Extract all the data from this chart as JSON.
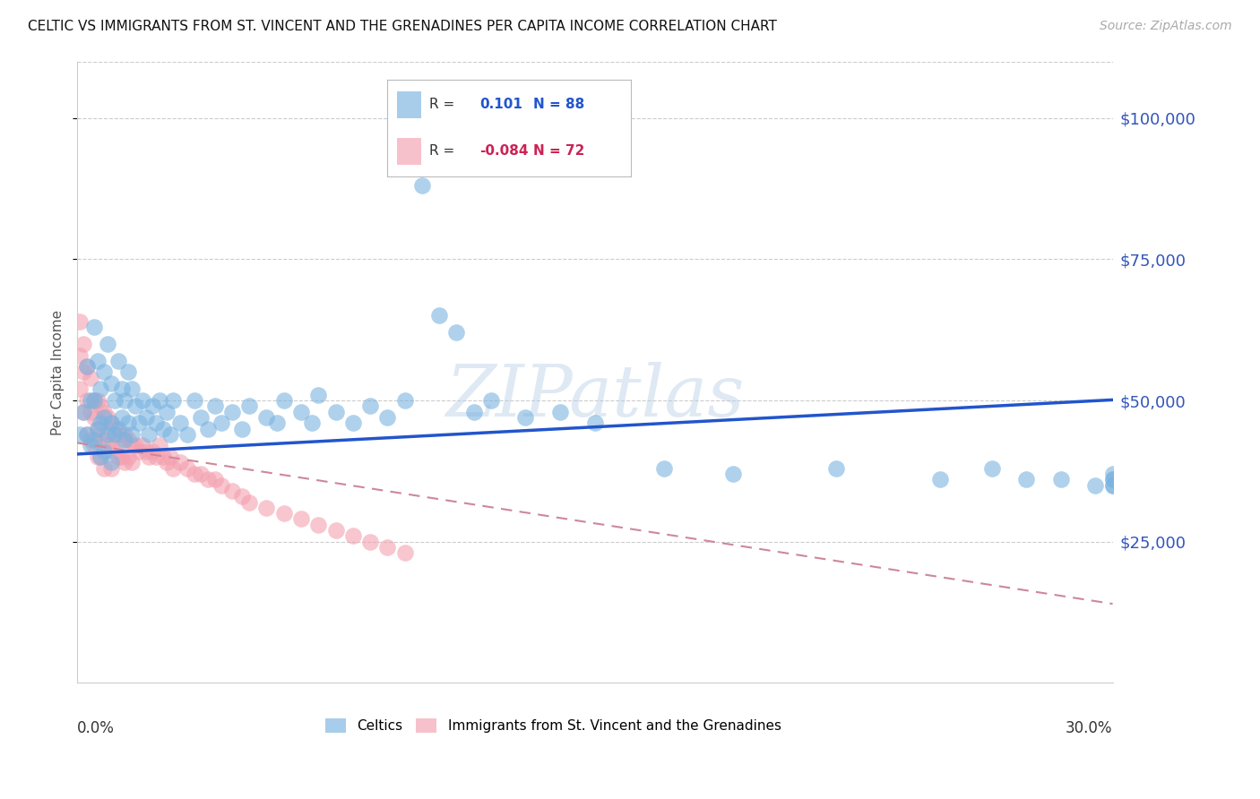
{
  "title": "CELTIC VS IMMIGRANTS FROM ST. VINCENT AND THE GRENADINES PER CAPITA INCOME CORRELATION CHART",
  "source_text": "Source: ZipAtlas.com",
  "ylabel": "Per Capita Income",
  "ytick_labels": [
    "$25,000",
    "$50,000",
    "$75,000",
    "$100,000"
  ],
  "ytick_values": [
    25000,
    50000,
    75000,
    100000
  ],
  "ylim": [
    0,
    110000
  ],
  "xlim": [
    0.0,
    0.3
  ],
  "background_color": "#ffffff",
  "blue_color": "#7ab3e0",
  "pink_color": "#f4a0b0",
  "blue_line_color": "#2255cc",
  "pink_line_color": "#cc8899",
  "blue_intercept": 40500,
  "blue_slope": 32000,
  "pink_intercept": 42500,
  "pink_slope": -95000,
  "blue_points_x": [
    0.001,
    0.002,
    0.003,
    0.003,
    0.004,
    0.004,
    0.005,
    0.005,
    0.005,
    0.006,
    0.006,
    0.007,
    0.007,
    0.007,
    0.008,
    0.008,
    0.008,
    0.009,
    0.009,
    0.01,
    0.01,
    0.01,
    0.011,
    0.011,
    0.012,
    0.012,
    0.013,
    0.013,
    0.014,
    0.014,
    0.015,
    0.015,
    0.016,
    0.016,
    0.017,
    0.018,
    0.019,
    0.02,
    0.021,
    0.022,
    0.023,
    0.024,
    0.025,
    0.026,
    0.027,
    0.028,
    0.03,
    0.032,
    0.034,
    0.036,
    0.038,
    0.04,
    0.042,
    0.045,
    0.048,
    0.05,
    0.055,
    0.058,
    0.06,
    0.065,
    0.068,
    0.07,
    0.075,
    0.08,
    0.085,
    0.09,
    0.095,
    0.1,
    0.105,
    0.11,
    0.115,
    0.12,
    0.13,
    0.14,
    0.15,
    0.17,
    0.19,
    0.22,
    0.25,
    0.265,
    0.275,
    0.285,
    0.295,
    0.3,
    0.3,
    0.3,
    0.3,
    0.3
  ],
  "blue_points_y": [
    44000,
    48000,
    56000,
    44000,
    50000,
    42000,
    63000,
    50000,
    43000,
    57000,
    45000,
    52000,
    46000,
    40000,
    55000,
    47000,
    41000,
    60000,
    44000,
    53000,
    46000,
    39000,
    50000,
    44000,
    57000,
    45000,
    52000,
    47000,
    50000,
    43000,
    55000,
    46000,
    52000,
    44000,
    49000,
    46000,
    50000,
    47000,
    44000,
    49000,
    46000,
    50000,
    45000,
    48000,
    44000,
    50000,
    46000,
    44000,
    50000,
    47000,
    45000,
    49000,
    46000,
    48000,
    45000,
    49000,
    47000,
    46000,
    50000,
    48000,
    46000,
    51000,
    48000,
    46000,
    49000,
    47000,
    50000,
    88000,
    65000,
    62000,
    48000,
    50000,
    47000,
    48000,
    46000,
    38000,
    37000,
    38000,
    36000,
    38000,
    36000,
    36000,
    35000,
    35000,
    36000,
    37000,
    35000,
    36000
  ],
  "pink_points_x": [
    0.001,
    0.001,
    0.001,
    0.002,
    0.002,
    0.002,
    0.003,
    0.003,
    0.003,
    0.004,
    0.004,
    0.004,
    0.005,
    0.005,
    0.005,
    0.006,
    0.006,
    0.006,
    0.007,
    0.007,
    0.007,
    0.008,
    0.008,
    0.008,
    0.009,
    0.009,
    0.01,
    0.01,
    0.01,
    0.011,
    0.011,
    0.012,
    0.012,
    0.013,
    0.013,
    0.014,
    0.014,
    0.015,
    0.015,
    0.016,
    0.016,
    0.017,
    0.018,
    0.019,
    0.02,
    0.021,
    0.022,
    0.023,
    0.024,
    0.025,
    0.026,
    0.027,
    0.028,
    0.03,
    0.032,
    0.034,
    0.036,
    0.038,
    0.04,
    0.042,
    0.045,
    0.048,
    0.05,
    0.055,
    0.06,
    0.065,
    0.07,
    0.075,
    0.08,
    0.085,
    0.09,
    0.095
  ],
  "pink_points_y": [
    64000,
    58000,
    52000,
    60000,
    55000,
    48000,
    56000,
    50000,
    44000,
    54000,
    48000,
    43000,
    50000,
    47000,
    42000,
    50000,
    45000,
    40000,
    49000,
    44000,
    40000,
    48000,
    43000,
    38000,
    47000,
    42000,
    46000,
    42000,
    38000,
    45000,
    41000,
    44000,
    40000,
    43000,
    40000,
    44000,
    39000,
    43000,
    40000,
    42000,
    39000,
    42000,
    41000,
    42000,
    41000,
    40000,
    41000,
    40000,
    42000,
    40000,
    39000,
    40000,
    38000,
    39000,
    38000,
    37000,
    37000,
    36000,
    36000,
    35000,
    34000,
    33000,
    32000,
    31000,
    30000,
    29000,
    28000,
    27000,
    26000,
    25000,
    24000,
    23000
  ]
}
